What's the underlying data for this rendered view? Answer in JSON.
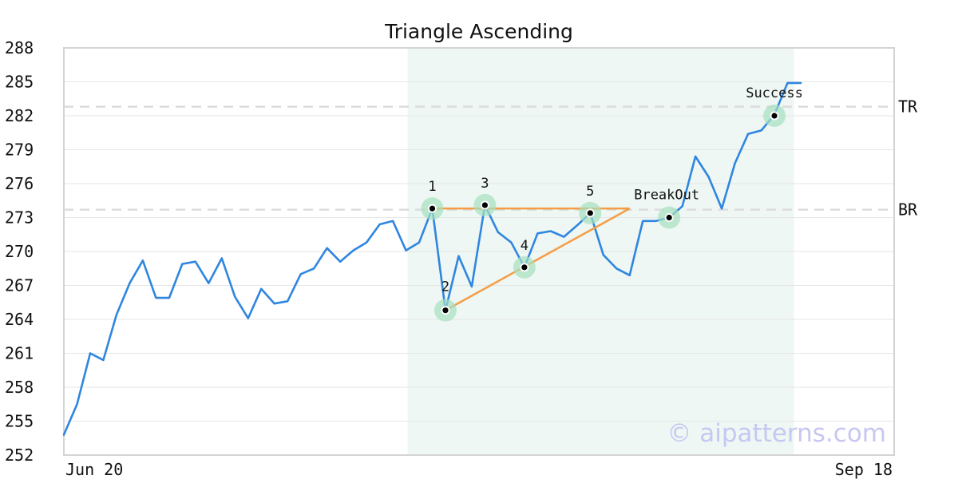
{
  "chart_data": {
    "type": "line",
    "title": "Triangle Ascending",
    "xlabel": "",
    "ylabel": "",
    "ylim": [
      252,
      288
    ],
    "yticks": [
      252,
      255,
      258,
      261,
      264,
      267,
      270,
      273,
      276,
      279,
      282,
      285,
      288
    ],
    "xtick_labels": [
      "Jun 20",
      "Sep 18"
    ],
    "grid": true,
    "series": [
      {
        "color": "#2f86e0",
        "values": [
          253.8,
          256.5,
          261.0,
          260.4,
          264.4,
          267.2,
          269.2,
          265.9,
          265.9,
          268.9,
          269.1,
          267.2,
          269.4,
          266.0,
          264.1,
          266.7,
          265.4,
          265.6,
          268.0,
          268.5,
          270.3,
          269.1,
          270.1,
          270.8,
          272.4,
          272.7,
          270.1,
          270.8,
          273.8,
          264.8,
          269.6,
          266.9,
          274.1,
          271.7,
          270.8,
          268.6,
          271.6,
          271.8,
          271.3,
          272.3,
          273.4,
          269.7,
          268.5,
          267.9,
          272.7,
          272.7,
          273.0,
          274.0,
          278.4,
          276.6,
          273.8,
          277.8,
          280.4,
          280.7,
          282.1,
          284.9,
          284.9
        ]
      }
    ],
    "pattern_region": {
      "start_index": 26,
      "end_index": 55,
      "color": "#eef7f3"
    },
    "resistance_lines": [
      {
        "label": "TR",
        "value": 282.8
      },
      {
        "label": "BR",
        "value": 273.7
      }
    ],
    "triangle": {
      "color": "#f59d45",
      "apex": {
        "index": 43,
        "value": 273.8
      },
      "top": [
        {
          "index": 28,
          "value": 273.8
        }
      ],
      "bottom": [
        {
          "index": 29,
          "value": 264.8
        }
      ]
    },
    "points": [
      {
        "label": "1",
        "index": 28,
        "value": 273.8
      },
      {
        "label": "2",
        "index": 29,
        "value": 264.8
      },
      {
        "label": "3",
        "index": 32,
        "value": 274.1
      },
      {
        "label": "4",
        "index": 35,
        "value": 268.6
      },
      {
        "label": "5",
        "index": 40,
        "value": 273.4
      },
      {
        "label": "BreakOut",
        "index": 46,
        "value": 273.0
      },
      {
        "label": "Success",
        "index": 54,
        "value": 282.0
      }
    ],
    "watermark": "© aipatterns.com"
  }
}
